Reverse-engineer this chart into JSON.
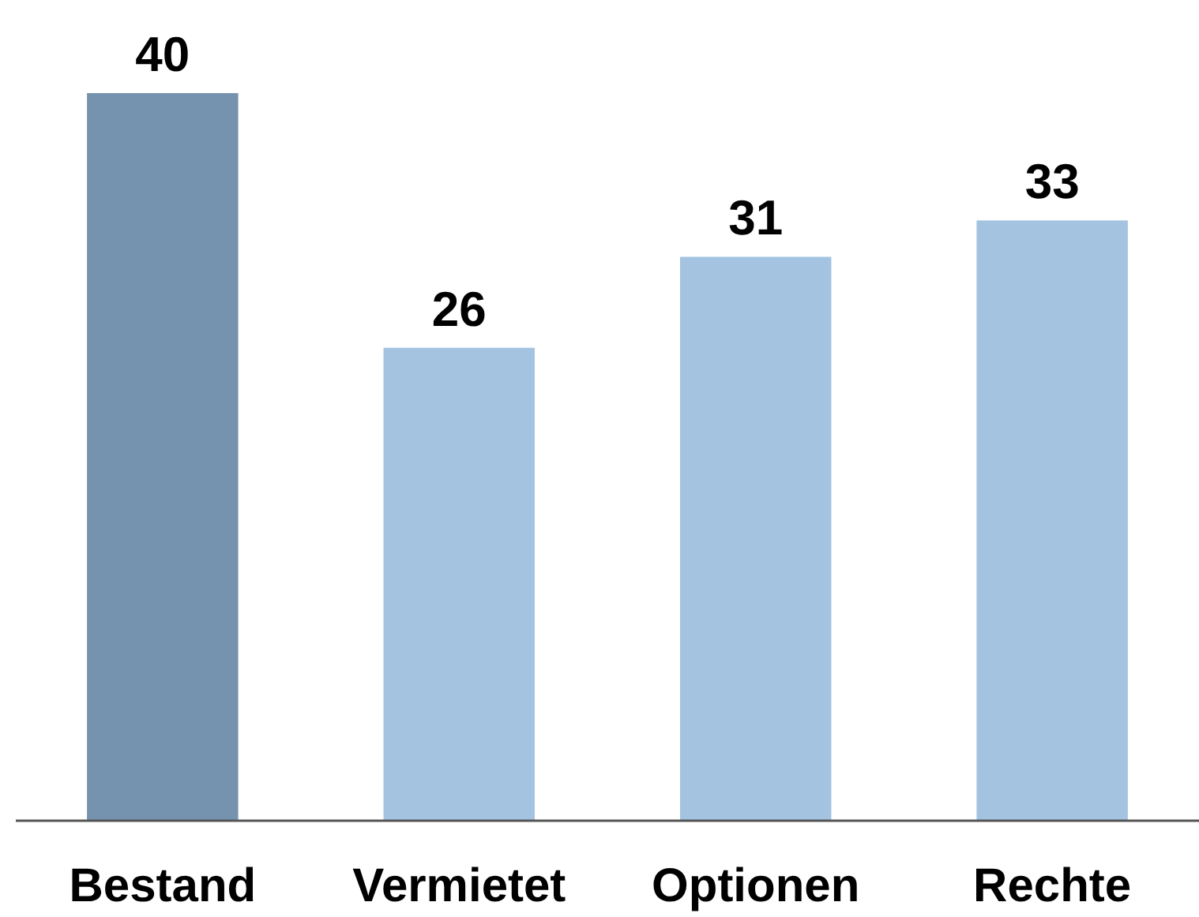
{
  "chart_data": {
    "type": "bar",
    "categories": [
      "Bestand",
      "Vermietet",
      "Optionen",
      "Rechte"
    ],
    "values": [
      40,
      26,
      31,
      33
    ],
    "colors": [
      "#7593ae",
      "#a3c3e1",
      "#a3c3e1",
      "#a3c3e1"
    ],
    "ylim": [
      0,
      40
    ],
    "data_labels": true,
    "tick_labels": "x"
  }
}
